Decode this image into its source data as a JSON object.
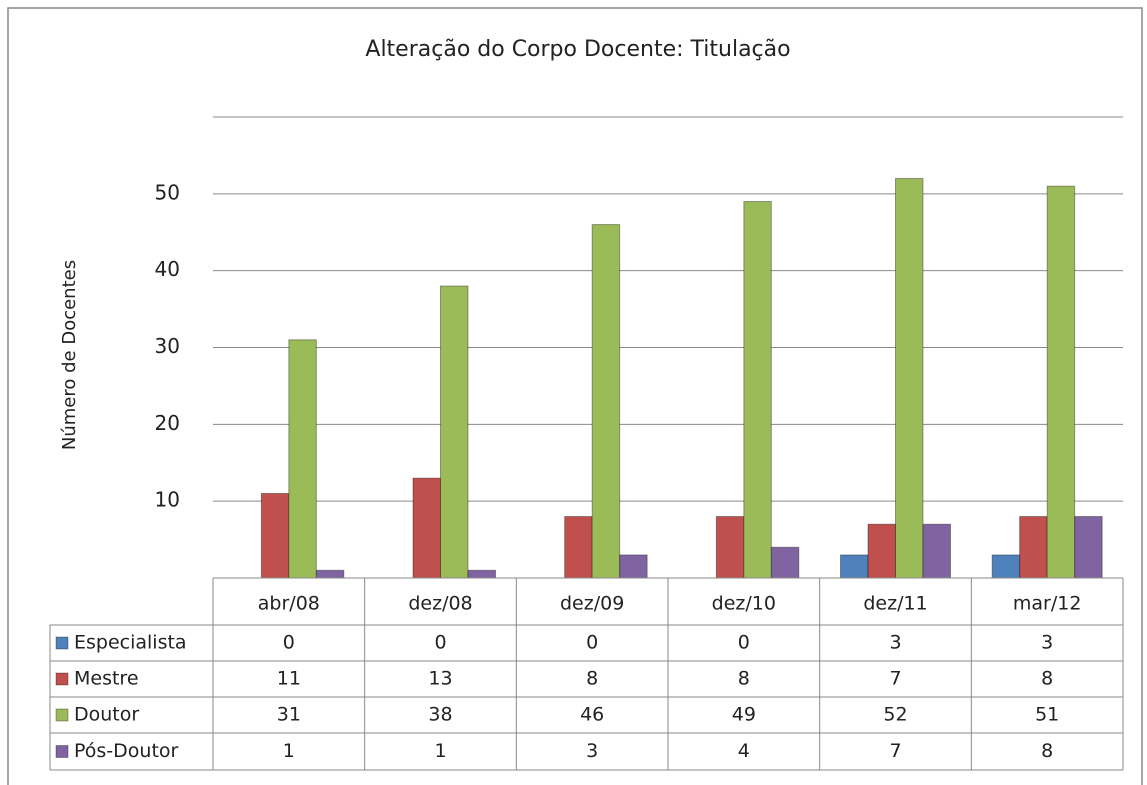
{
  "chart_data": {
    "type": "bar",
    "title": "Alteração do Corpo Docente: Titulação",
    "y_label": "Número de Docentes",
    "categories": [
      "abr/08",
      "dez/08",
      "dez/09",
      "dez/10",
      "dez/11",
      "mar/12"
    ],
    "series": [
      {
        "name": "Especialista",
        "color": "#4f81bd",
        "values": [
          0,
          0,
          0,
          0,
          3,
          3
        ]
      },
      {
        "name": "Mestre",
        "color": "#c0504d",
        "values": [
          11,
          13,
          8,
          8,
          7,
          8
        ]
      },
      {
        "name": "Doutor",
        "color": "#9bbb59",
        "values": [
          31,
          38,
          46,
          49,
          52,
          51
        ]
      },
      {
        "name": "Pós-Doutor",
        "color": "#8064a2",
        "values": [
          1,
          1,
          3,
          4,
          7,
          8
        ]
      }
    ],
    "ylim": [
      0,
      60
    ],
    "yticks": [
      10,
      20,
      30,
      40,
      50
    ],
    "grid": true,
    "legend": "table"
  }
}
